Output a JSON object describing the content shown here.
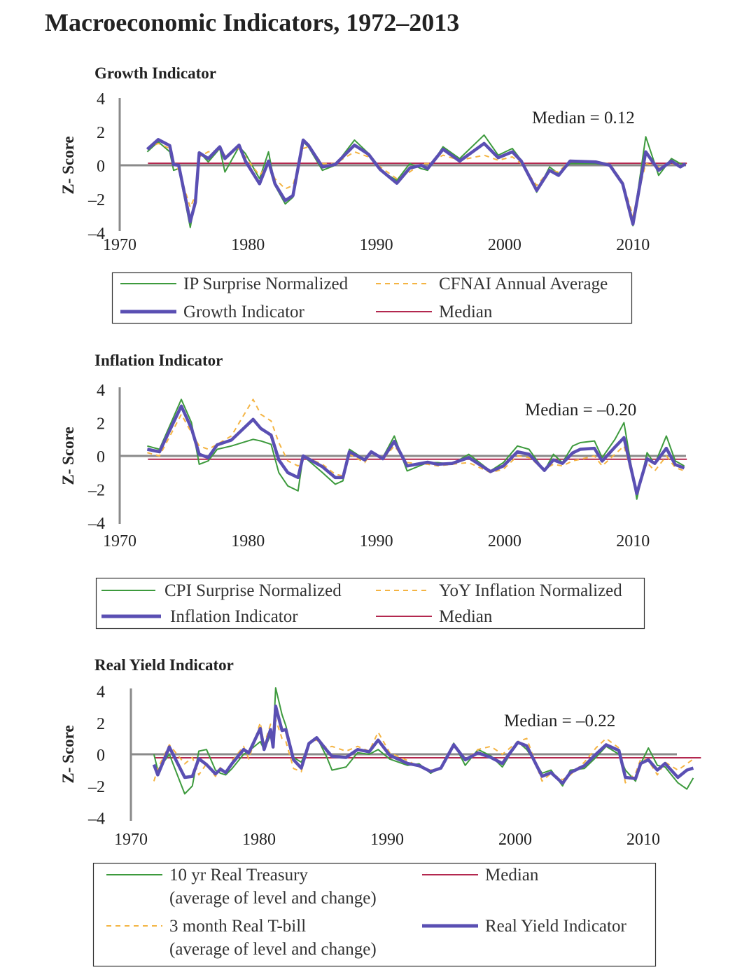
{
  "title": "Macroeconomic Indicators, 1972–2013",
  "colors": {
    "green": "#3d9a3d",
    "orange": "#f4b443",
    "purple": "#5a4fb3",
    "median": "#b3284f",
    "zero": "#8a8a8a"
  },
  "chart_data": [
    {
      "type": "line",
      "title": "Growth Indicator",
      "ylabel": "Z- Score",
      "ylim": [
        -4,
        4
      ],
      "xlim": [
        1970,
        2014
      ],
      "x_ticks": [
        "1970",
        "1980",
        "1990",
        "2000",
        "2010"
      ],
      "y_ticks": [
        "4",
        "2",
        "0",
        "–2",
        "–4"
      ],
      "median": 0.12,
      "median_label": "Median = 0.12",
      "legend": {
        "position": "bottom",
        "entries": [
          "IP Surprise Normalized",
          "CFNAI Annual Average",
          "Growth Indicator",
          "Median"
        ]
      },
      "x": [
        1972.15,
        1973.0,
        1973.9,
        1974.2,
        1974.6,
        1975.5,
        1975.9,
        1976.2,
        1976.9,
        1977.8,
        1978.2,
        1979.3,
        1979.8,
        1980.9,
        1981.6,
        1982.1,
        1982.9,
        1983.5,
        1984.3,
        1984.7,
        1985.8,
        1986.8,
        1988.3,
        1989.4,
        1990.3,
        1991.6,
        1992.6,
        1993.5,
        1994.0,
        1995.2,
        1996.5,
        1998.4,
        1999.5,
        2000.6,
        2001.3,
        2002.5,
        2003.5,
        2004.2,
        2005.1,
        2007.1,
        2008.2,
        2009.2,
        2010.0,
        2011.0,
        2012.0,
        2013.0,
        2013.7,
        2014.1
      ],
      "series": [
        {
          "name": "IP Surprise Normalized",
          "style": "green",
          "values": [
            0.8,
            1.4,
            0.8,
            -0.3,
            -0.2,
            -3.7,
            -2.0,
            0.8,
            0.2,
            1.0,
            -0.4,
            1.1,
            0.7,
            -0.8,
            0.8,
            -1.2,
            -2.3,
            -1.9,
            1.4,
            1.1,
            -0.3,
            0.0,
            1.5,
            0.7,
            -0.3,
            -0.9,
            0.1,
            -0.2,
            -0.3,
            1.1,
            0.4,
            1.8,
            0.6,
            1.0,
            0.3,
            -1.6,
            -0.1,
            -0.5,
            0.1,
            0.1,
            0.0,
            -1.0,
            -3.6,
            1.7,
            -0.6,
            0.4,
            0.1,
            0.0
          ]
        },
        {
          "name": "CFNAI Annual Average",
          "style": "orange",
          "values": [
            1.0,
            1.3,
            1.0,
            0.2,
            -0.3,
            -2.5,
            -1.8,
            0.5,
            0.8,
            0.9,
            0.6,
            1.0,
            0.5,
            -0.6,
            0.1,
            -0.8,
            -1.4,
            -1.2,
            1.0,
            1.1,
            0.1,
            0.1,
            0.8,
            0.5,
            -0.1,
            -0.8,
            -0.4,
            0.1,
            0.1,
            0.6,
            0.3,
            0.6,
            0.3,
            0.5,
            0.1,
            -1.2,
            -0.3,
            -0.4,
            0.3,
            0.2,
            0.1,
            -1.0,
            -3.0,
            0.1,
            -0.1,
            0.1,
            0.0,
            0.1
          ]
        },
        {
          "name": "Growth Indicator",
          "style": "purple",
          "values": [
            0.95,
            1.53,
            1.17,
            0.04,
            0,
            -3.36,
            -2.2,
            0.74,
            0.4,
            1.1,
            0.4,
            1.2,
            0.25,
            -1.1,
            0.25,
            -1.1,
            -2.1,
            -1.8,
            1.5,
            1.2,
            -0.1,
            0.05,
            1.2,
            0.65,
            -0.25,
            -1.07,
            -0.17,
            0,
            -0.2,
            0.95,
            0.25,
            1.3,
            0.45,
            0.8,
            0.25,
            -1.5,
            -0.3,
            -0.6,
            0.25,
            0.2,
            0,
            -1.1,
            -3.5,
            0.8,
            -0.3,
            0.25,
            -0.1,
            0.1
          ]
        }
      ]
    },
    {
      "type": "line",
      "title": "Inflation Indicator",
      "ylabel": "Z- Score",
      "ylim": [
        -4,
        4
      ],
      "xlim": [
        1970,
        2014
      ],
      "x_ticks": [
        "1970",
        "1980",
        "1990",
        "2000",
        "2010"
      ],
      "y_ticks": [
        "4",
        "2",
        "0",
        "–2",
        "–4"
      ],
      "median": -0.2,
      "median_label": "Median = –0.20",
      "legend": {
        "position": "bottom",
        "entries": [
          "CPI Surprise Normalized",
          "YoY Inflation Normalized",
          "Inflation Indicator",
          "Median"
        ]
      },
      "x": [
        1972.15,
        1973.1,
        1974.8,
        1975.6,
        1976.2,
        1976.9,
        1977.6,
        1978.7,
        1980.4,
        1981.0,
        1981.8,
        1982.4,
        1983.1,
        1983.9,
        1984.3,
        1985.8,
        1986.8,
        1987.4,
        1987.9,
        1989.1,
        1989.6,
        1990.5,
        1991.4,
        1992.4,
        1994.0,
        1994.8,
        1995.9,
        1997.2,
        1998.9,
        1999.9,
        2001.0,
        2001.9,
        2003.1,
        2003.8,
        2004.5,
        2005.3,
        2005.9,
        2007.0,
        2007.6,
        2008.6,
        2009.3,
        2010.3,
        2011.1,
        2011.7,
        2012.6,
        2013.3,
        2014.0
      ],
      "series": [
        {
          "name": "CPI Surprise Normalized",
          "style": "green",
          "values": [
            0.6,
            0.4,
            3.4,
            2.0,
            -0.5,
            -0.3,
            0.4,
            0.6,
            1.0,
            0.9,
            0.7,
            -1.0,
            -1.8,
            -2.1,
            0.0,
            -1.0,
            -1.7,
            -1.5,
            0.4,
            -0.2,
            0.2,
            -0.1,
            1.2,
            -0.9,
            -0.4,
            -0.4,
            -0.5,
            0.1,
            -0.9,
            -0.4,
            0.6,
            0.4,
            -0.9,
            0.1,
            -0.4,
            0.6,
            0.8,
            0.9,
            -0.1,
            1.0,
            2.0,
            -2.6,
            0.2,
            -0.5,
            1.2,
            -0.3,
            -0.6
          ]
        },
        {
          "name": "YoY Inflation Normalized",
          "style": "orange",
          "values": [
            0.2,
            0.0,
            2.5,
            1.4,
            0.6,
            0.4,
            0.7,
            1.2,
            3.4,
            2.5,
            2.1,
            0.8,
            -0.3,
            -0.6,
            0.0,
            -0.5,
            -1.1,
            -1.2,
            0.1,
            -0.4,
            0.2,
            -0.2,
            0.6,
            -0.4,
            -0.5,
            -0.6,
            -0.5,
            -0.4,
            -1.0,
            -0.8,
            0.0,
            -0.1,
            -0.8,
            -0.5,
            -0.6,
            -0.3,
            -0.2,
            0.0,
            -0.6,
            0.1,
            0.6,
            -2.2,
            -0.4,
            -0.9,
            0.0,
            -0.7,
            -0.9
          ]
        },
        {
          "name": "Inflation Indicator",
          "style": "purple",
          "values": [
            0.4,
            0.25,
            3.0,
            1.65,
            0.1,
            -0.1,
            0.67,
            0.95,
            2.2,
            1.65,
            1.25,
            -0.24,
            -1.0,
            -1.3,
            0,
            -0.65,
            -1.3,
            -1.3,
            0.25,
            -0.24,
            0.25,
            -0.17,
            0.88,
            -0.6,
            -0.38,
            -0.5,
            -0.45,
            -0.1,
            -0.94,
            -0.6,
            0.25,
            0.1,
            -0.87,
            -0.24,
            -0.45,
            0.18,
            0.4,
            0.46,
            -0.31,
            0.53,
            1.1,
            -2.27,
            -0.17,
            -0.45,
            0.46,
            -0.52,
            -0.73
          ]
        }
      ]
    },
    {
      "type": "line",
      "title": "Real Yield Indicator",
      "ylabel": "Z- Score",
      "ylim": [
        -4,
        4
      ],
      "xlim": [
        1970,
        2014
      ],
      "x_ticks": [
        "1970",
        "1980",
        "1990",
        "2000",
        "2010"
      ],
      "y_ticks": [
        "4",
        "2",
        "0",
        "–2",
        "–4"
      ],
      "median": -0.22,
      "median_label": "Median = –0.22",
      "legend": {
        "position": "bottom",
        "entries": [
          "10 yr Real Treasury",
          "(average of level and change)",
          "3 month Real T-bill",
          "(average of level and change)",
          "Median",
          "Real Yield Indicator"
        ]
      },
      "x": [
        1971.8,
        1972.1,
        1973.0,
        1974.2,
        1974.8,
        1975.3,
        1975.9,
        1976.6,
        1977.0,
        1977.4,
        1977.9,
        1978.8,
        1979.2,
        1980.1,
        1980.4,
        1980.9,
        1981.1,
        1981.3,
        1981.8,
        1982.1,
        1982.7,
        1983.3,
        1983.9,
        1984.5,
        1985.3,
        1985.7,
        1986.8,
        1987.7,
        1988.6,
        1989.3,
        1990.2,
        1991.6,
        1992.5,
        1993.4,
        1994.2,
        1995.2,
        1996.1,
        1997.1,
        1998.1,
        1999.0,
        2000.2,
        2000.9,
        2002.1,
        2002.8,
        2003.7,
        2004.3,
        2005.4,
        2006.3,
        2007.1,
        2008.1,
        2008.6,
        2009.4,
        2009.8,
        2010.4,
        2011.1,
        2011.7,
        2012.7,
        2013.4,
        2013.9
      ],
      "series": [
        {
          "name": "10 yr Real Treasury (average of level and change)",
          "style": "green",
          "values": [
            0.0,
            -1.0,
            0.0,
            -2.5,
            -2.0,
            0.2,
            0.3,
            -1.0,
            -1.2,
            -1.3,
            -0.9,
            0.0,
            0.2,
            0.8,
            0.3,
            1.2,
            0.8,
            4.2,
            2.5,
            1.8,
            -0.2,
            -0.5,
            0.6,
            1.1,
            -0.2,
            -1.0,
            -0.8,
            0.1,
            0.0,
            0.3,
            -0.3,
            -0.7,
            -0.6,
            -1.2,
            -0.8,
            0.7,
            -0.7,
            0.3,
            -0.1,
            -0.8,
            0.8,
            0.3,
            -1.2,
            -1.0,
            -2.0,
            -1.0,
            -0.9,
            -0.2,
            0.5,
            0.0,
            -1.0,
            -1.7,
            -0.6,
            0.4,
            -0.7,
            -0.8,
            -1.8,
            -2.2,
            -1.5
          ]
        },
        {
          "name": "3 month Real T-bill (average of level and change)",
          "style": "orange",
          "values": [
            -1.7,
            -0.9,
            0.6,
            -0.6,
            -0.2,
            -1.3,
            -0.6,
            -1.4,
            -0.8,
            -1.2,
            -0.4,
            0.5,
            -0.3,
            2.0,
            0.6,
            1.9,
            0.4,
            2.2,
            1.0,
            0.8,
            -0.9,
            -1.1,
            0.7,
            0.9,
            0.4,
            0.5,
            0.2,
            0.5,
            0.2,
            1.4,
            0.1,
            -0.4,
            -0.8,
            -1.0,
            -0.9,
            0.5,
            -0.4,
            0.3,
            0.5,
            0.0,
            0.8,
            1.0,
            -1.7,
            -1.2,
            -1.6,
            -1.3,
            -0.5,
            0.4,
            1.0,
            0.4,
            -1.8,
            -1.2,
            -0.3,
            -0.4,
            -1.3,
            -0.5,
            -1.0,
            -0.6,
            -0.3
          ]
        },
        {
          "name": "Real Yield Indicator",
          "style": "purple",
          "values": [
            -0.65,
            -1.3,
            0.46,
            -1.46,
            -1.4,
            -0.28,
            -0.65,
            -1.24,
            -0.94,
            -1.16,
            -0.58,
            0.3,
            0.09,
            1.63,
            0.3,
            1.56,
            0.46,
            3.04,
            1.5,
            1.56,
            -0.35,
            -0.87,
            0.68,
            1.05,
            0.24,
            -0.13,
            -0.2,
            0.3,
            0.16,
            0.9,
            -0.06,
            -0.58,
            -0.72,
            -1.09,
            -0.87,
            0.6,
            -0.35,
            0.09,
            -0.2,
            -0.58,
            0.75,
            0.53,
            -1.39,
            -1.16,
            -1.83,
            -1.16,
            -0.72,
            0,
            0.6,
            0.24,
            -1.46,
            -1.53,
            -0.58,
            -0.35,
            -1.0,
            -0.58,
            -1.46,
            -1.0,
            -0.87
          ]
        }
      ]
    }
  ]
}
